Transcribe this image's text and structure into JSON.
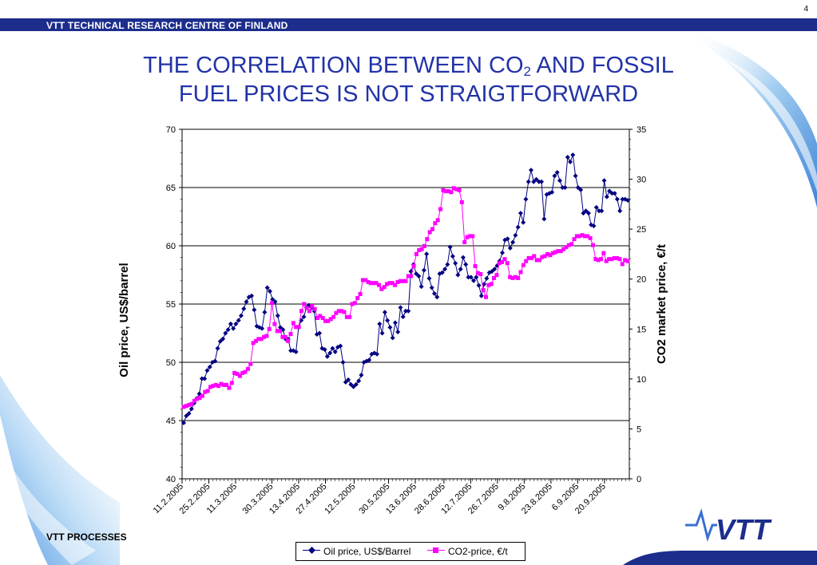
{
  "page_number": "4",
  "header": "VTT TECHNICAL RESEARCH CENTRE OF FINLAND",
  "title": {
    "line1_pre": "THE CORRELATION BETWEEN CO",
    "line1_sub": "2",
    "line1_post": " AND FOSSIL",
    "line2": "FUEL PRICES IS NOT STRAIGTFORWARD"
  },
  "footer": "VTT PROCESSES",
  "logo_text": "VTT",
  "colors": {
    "oil": "#000080",
    "co2": "#ff00ff",
    "header_bar": "#1c2d8c",
    "title": "#2233a8"
  },
  "chart_data": {
    "type": "line",
    "x_start": "2005-02-11",
    "x_end": "2005-10-03",
    "x_tick_labels": [
      "11.2.2005",
      "25.2.2005",
      "11.3.2005",
      "30.3.2005",
      "13.4.2005",
      "27.4.2005",
      "12.5.2005",
      "30.5.2005",
      "13.6.2005",
      "28.6.2005",
      "12.7.2005",
      "26.7.2005",
      "9.8.2005",
      "23.8.2005",
      "6.9.2005",
      "20.9.2005"
    ],
    "y_left": {
      "label": "Oil price, US$/barrel",
      "range": [
        40,
        70
      ],
      "ticks": [
        40,
        45,
        50,
        55,
        60,
        65,
        70
      ]
    },
    "y_right": {
      "label": "CO2 market price, €/t",
      "range": [
        0,
        35
      ],
      "ticks": [
        0,
        5,
        10,
        15,
        20,
        25,
        30,
        35
      ]
    },
    "grid": "horizontal",
    "legend": "bottom",
    "series": [
      {
        "name": "Oil price, US$/Barrel",
        "axis": "left",
        "marker": "diamond",
        "values": [
          44.8,
          45.4,
          45.6,
          46.0,
          46.5,
          46.9,
          47.3,
          48.6,
          48.6,
          49.3,
          49.6,
          50.0,
          50.1,
          51.2,
          51.8,
          52.0,
          52.5,
          52.8,
          53.3,
          52.9,
          53.3,
          53.6,
          54.0,
          54.6,
          55.2,
          55.6,
          55.7,
          54.5,
          53.1,
          53.0,
          52.9,
          54.3,
          56.4,
          56.1,
          55.4,
          55.2,
          54.0,
          53.0,
          52.8,
          52.0,
          52.0,
          51.0,
          51.0,
          50.9,
          53.0,
          53.6,
          53.9,
          54.7,
          54.9,
          54.7,
          54.4,
          52.4,
          52.5,
          51.2,
          51.1,
          50.5,
          50.8,
          51.2,
          50.9,
          51.3,
          51.4,
          50.0,
          48.3,
          48.5,
          48.1,
          47.9,
          48.1,
          48.4,
          48.9,
          50.0,
          50.1,
          50.2,
          50.7,
          50.8,
          50.7,
          53.3,
          52.5,
          54.3,
          53.6,
          53.0,
          52.1,
          53.4,
          52.6,
          54.7,
          53.9,
          54.4,
          54.4,
          57.8,
          58.4,
          57.6,
          57.4,
          56.5,
          57.9,
          59.3,
          57.2,
          56.4,
          55.9,
          55.6,
          57.6,
          57.7,
          58.0,
          58.4,
          59.9,
          59.1,
          58.5,
          57.5,
          58.0,
          59.0,
          58.4,
          57.3,
          57.3,
          57.0,
          57.3,
          56.6,
          55.7,
          56.7,
          57.2,
          57.7,
          57.8,
          58.0,
          58.3,
          58.7,
          59.4,
          60.5,
          60.6,
          59.8,
          60.3,
          60.9,
          61.6,
          62.8,
          62.0,
          64.0,
          65.5,
          66.5,
          65.5,
          65.7,
          65.5,
          65.5,
          62.3,
          64.4,
          64.5,
          64.6,
          66.0,
          66.3,
          65.6,
          65.0,
          65.0,
          67.6,
          67.2,
          67.8,
          66.0,
          65.0,
          64.8,
          62.8,
          63.0,
          62.8,
          61.8,
          61.7,
          63.3,
          63.0,
          63.0,
          65.6,
          64.2,
          64.7,
          64.5,
          64.5,
          64.0,
          63.0,
          64.0,
          64.0,
          63.9
        ]
      },
      {
        "name": "CO2-price, €/t",
        "axis": "right",
        "marker": "square",
        "values": [
          7.2,
          7.3,
          7.4,
          7.5,
          7.8,
          8.0,
          8.1,
          8.3,
          8.7,
          8.8,
          9.2,
          9.3,
          9.4,
          9.3,
          9.5,
          9.4,
          9.4,
          9.1,
          9.6,
          10.6,
          10.5,
          10.3,
          10.6,
          10.7,
          11.0,
          11.5,
          13.6,
          13.8,
          14.0,
          14.0,
          14.2,
          14.3,
          15.0,
          17.6,
          15.5,
          14.8,
          14.8,
          14.2,
          14.2,
          13.8,
          14.5,
          15.6,
          15.2,
          15.2,
          16.8,
          17.5,
          17.1,
          16.8,
          17.3,
          17.0,
          16.1,
          16.3,
          16.1,
          15.8,
          15.8,
          16.0,
          16.2,
          16.6,
          16.8,
          16.8,
          16.7,
          16.2,
          16.2,
          17.5,
          17.6,
          18.1,
          18.5,
          19.9,
          19.9,
          19.7,
          19.6,
          19.6,
          19.6,
          19.4,
          19.0,
          19.2,
          19.5,
          19.6,
          19.6,
          19.4,
          19.7,
          19.8,
          19.8,
          19.8,
          20.3,
          20.3,
          21.3,
          22.5,
          22.9,
          23.0,
          23.3,
          24.0,
          24.7,
          25.0,
          25.6,
          25.9,
          27.0,
          28.9,
          28.8,
          28.8,
          28.7,
          29.1,
          29.0,
          28.9,
          27.7,
          23.7,
          24.2,
          24.3,
          24.3,
          21.3,
          20.6,
          20.5,
          18.9,
          18.2,
          19.4,
          19.5,
          20.1,
          20.4,
          21.6,
          21.7,
          22.0,
          21.6,
          20.2,
          20.1,
          20.2,
          20.1,
          20.7,
          21.4,
          21.8,
          22.1,
          22.1,
          22.3,
          21.9,
          21.9,
          22.2,
          22.3,
          22.5,
          22.4,
          22.6,
          22.7,
          22.8,
          22.8,
          23.0,
          23.2,
          23.4,
          23.5,
          24.0,
          24.3,
          24.3,
          24.4,
          24.3,
          24.3,
          24.1,
          23.4,
          22.0,
          21.9,
          22.0,
          22.6,
          21.8,
          22.0,
          22.0,
          22.1,
          22.1,
          22.0,
          21.5,
          21.9,
          21.8
        ]
      }
    ]
  }
}
